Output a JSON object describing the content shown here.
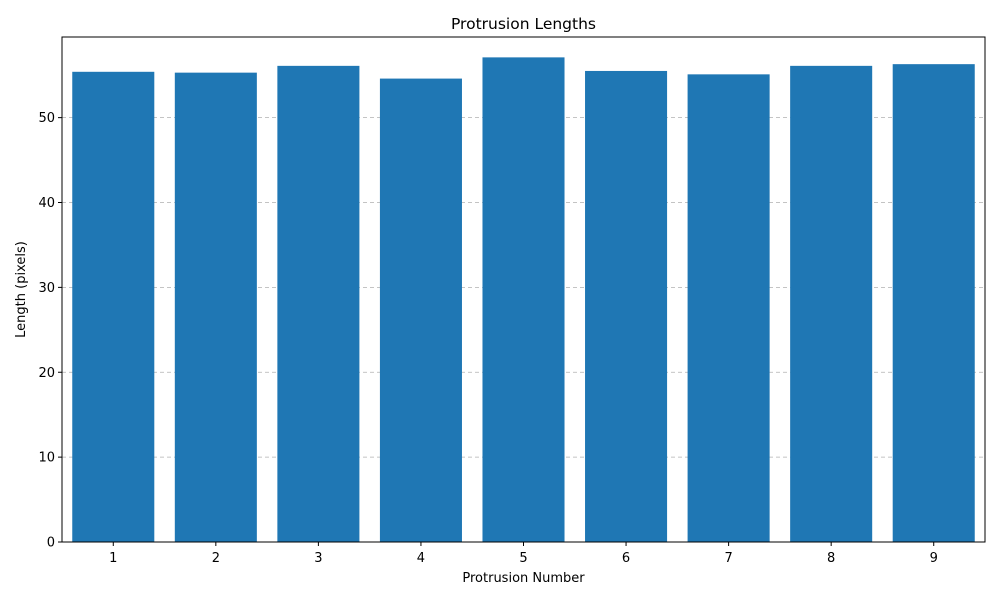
{
  "chart_data": {
    "type": "bar",
    "title": "Protrusion Lengths",
    "xlabel": "Protrusion Number",
    "ylabel": "Length (pixels)",
    "categories": [
      "1",
      "2",
      "3",
      "4",
      "5",
      "6",
      "7",
      "8",
      "9"
    ],
    "values": [
      55.4,
      55.3,
      56.1,
      54.6,
      57.1,
      55.5,
      55.1,
      56.1,
      56.3
    ],
    "ylim": [
      0,
      59.5
    ],
    "yticks": [
      0,
      10,
      20,
      30,
      40,
      50
    ],
    "grid": "y-dashed",
    "bar_color": "#1f77b4",
    "grid_color": "#b0b0b0"
  }
}
